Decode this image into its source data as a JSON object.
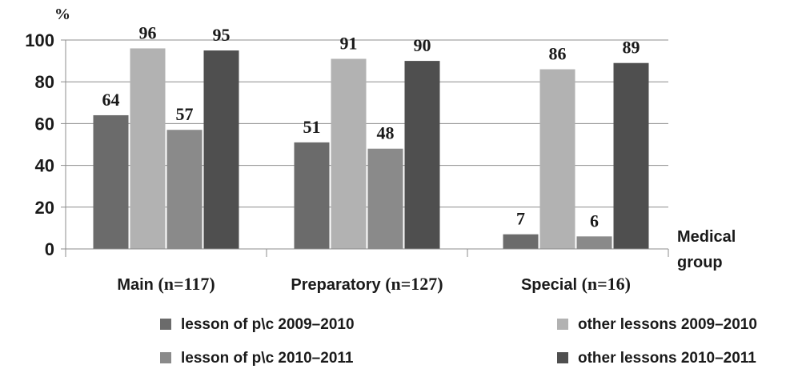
{
  "chart_data": {
    "type": "bar",
    "ylabel": "%",
    "xlabel": "Medical group",
    "ylim": [
      0,
      100
    ],
    "yticks": [
      "0",
      "20",
      "40",
      "60",
      "80",
      "100"
    ],
    "grid": true,
    "legend_position": "bottom",
    "categories": [
      {
        "name": "Main",
        "n": "(n=117)"
      },
      {
        "name": "Preparatory",
        "n": "(n=127)"
      },
      {
        "name": "Special",
        "n": "(n=16)"
      }
    ],
    "series": [
      {
        "name": "lesson of p\\c 2009–2010",
        "color": "#6b6b6b",
        "values": [
          64,
          51,
          7
        ]
      },
      {
        "name": "other lessons 2009–2010",
        "color": "#b2b2b2",
        "values": [
          96,
          91,
          86
        ]
      },
      {
        "name": "lesson of p\\c 2010–2011",
        "color": "#8a8a8a",
        "values": [
          57,
          48,
          6
        ]
      },
      {
        "name": "other lessons 2010–2011",
        "color": "#4f4f4f",
        "values": [
          95,
          90,
          89
        ]
      }
    ]
  }
}
